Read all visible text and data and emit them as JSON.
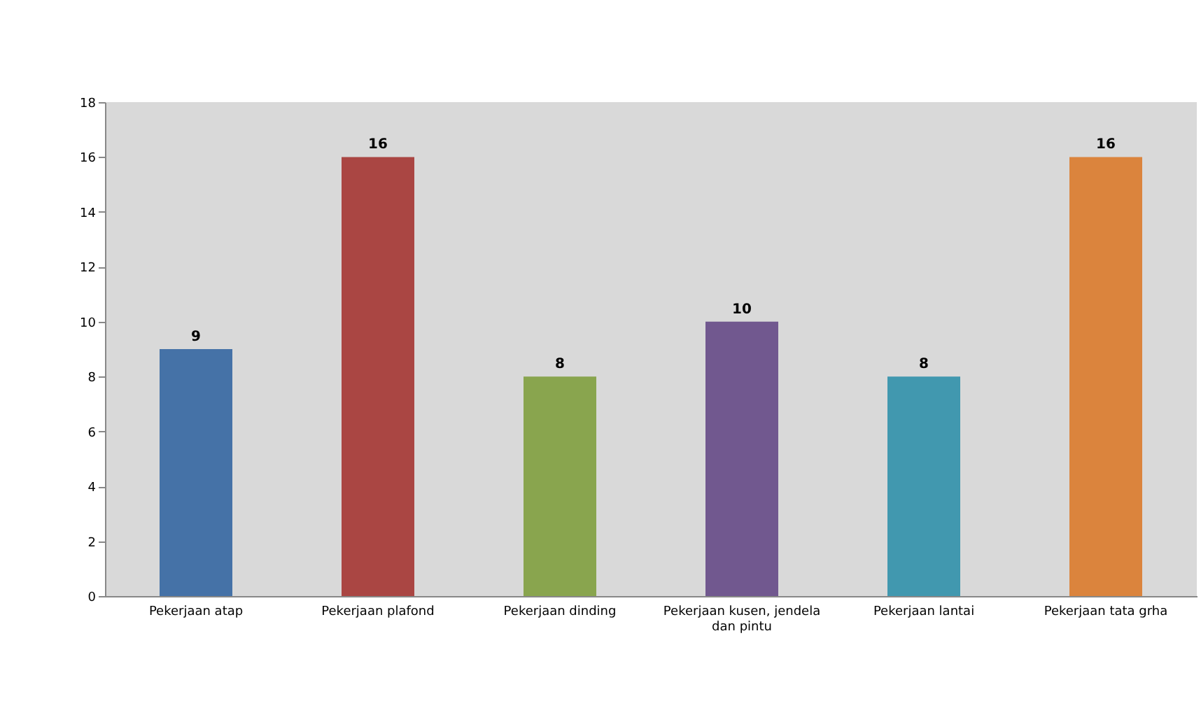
{
  "chart_data": {
    "type": "bar",
    "categories": [
      "Pekerjaan atap",
      "Pekerjaan plafond",
      "Pekerjaan dinding",
      "Pekerjaan kusen, jendela dan pintu",
      "Pekerjaan lantai",
      "Pekerjaan tata grha"
    ],
    "values": [
      9,
      16,
      8,
      10,
      8,
      16
    ],
    "colors": [
      "#4572a7",
      "#aa4643",
      "#89a54e",
      "#71588f",
      "#4198af",
      "#db843d"
    ],
    "ylim": [
      0,
      18
    ],
    "yticks": [
      0,
      2,
      4,
      6,
      8,
      10,
      12,
      14,
      16,
      18
    ],
    "grid": false,
    "data_labels": true
  }
}
